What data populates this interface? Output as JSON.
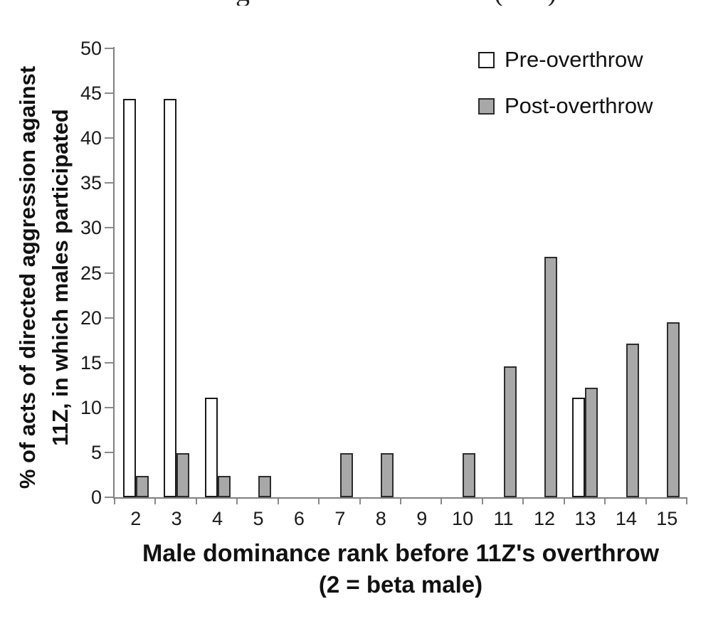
{
  "colors": {
    "background": "#ffffff",
    "axis_line": "#7f7f7f",
    "tick_mark": "#8a8a8a",
    "text": "#111111",
    "pre_fill": "#ffffff",
    "pre_border": "#1a1a1a",
    "post_fill": "#a8a8a8",
    "post_border": "#2d2d2d"
  },
  "top_fragment": {
    "left_glyph": "g",
    "paren_open": "(",
    "paren_close": ")"
  },
  "legend": {
    "pre_label": "Pre-overthrow",
    "post_label": "Post-overthrow"
  },
  "chart_data": {
    "type": "bar",
    "title": "",
    "categories": [
      2,
      3,
      4,
      5,
      6,
      7,
      8,
      9,
      10,
      11,
      12,
      13,
      14,
      15
    ],
    "series": [
      {
        "name": "Pre-overthrow",
        "fill": "#ffffff",
        "border": "#1a1a1a",
        "values": [
          44.4,
          44.4,
          11.1,
          0,
          0,
          0,
          0,
          0,
          0,
          0,
          0,
          11.1,
          0,
          0
        ]
      },
      {
        "name": "Post-overthrow",
        "fill": "#a8a8a8",
        "border": "#2d2d2d",
        "values": [
          2.4,
          4.9,
          2.4,
          2.4,
          0,
          4.9,
          4.9,
          0,
          4.9,
          14.6,
          26.8,
          12.2,
          17.1,
          19.5
        ]
      }
    ],
    "xlabel_line1": "Male dominance rank before 11Z's overthrow",
    "xlabel_line2": "(2 = beta male)",
    "ylabel_line1": "% of acts of directed aggression against",
    "ylabel_line2": "11Z, in which males participated",
    "ylim": [
      0,
      50
    ],
    "yticks": [
      0,
      5,
      10,
      15,
      20,
      25,
      30,
      35,
      40,
      45,
      50
    ],
    "xticks_labels": [
      "2",
      "3",
      "4",
      "5",
      "6",
      "7",
      "8",
      "9",
      "10",
      "11",
      "12",
      "13",
      "14",
      "15"
    ],
    "grid": false,
    "legend_position": "top-right"
  }
}
